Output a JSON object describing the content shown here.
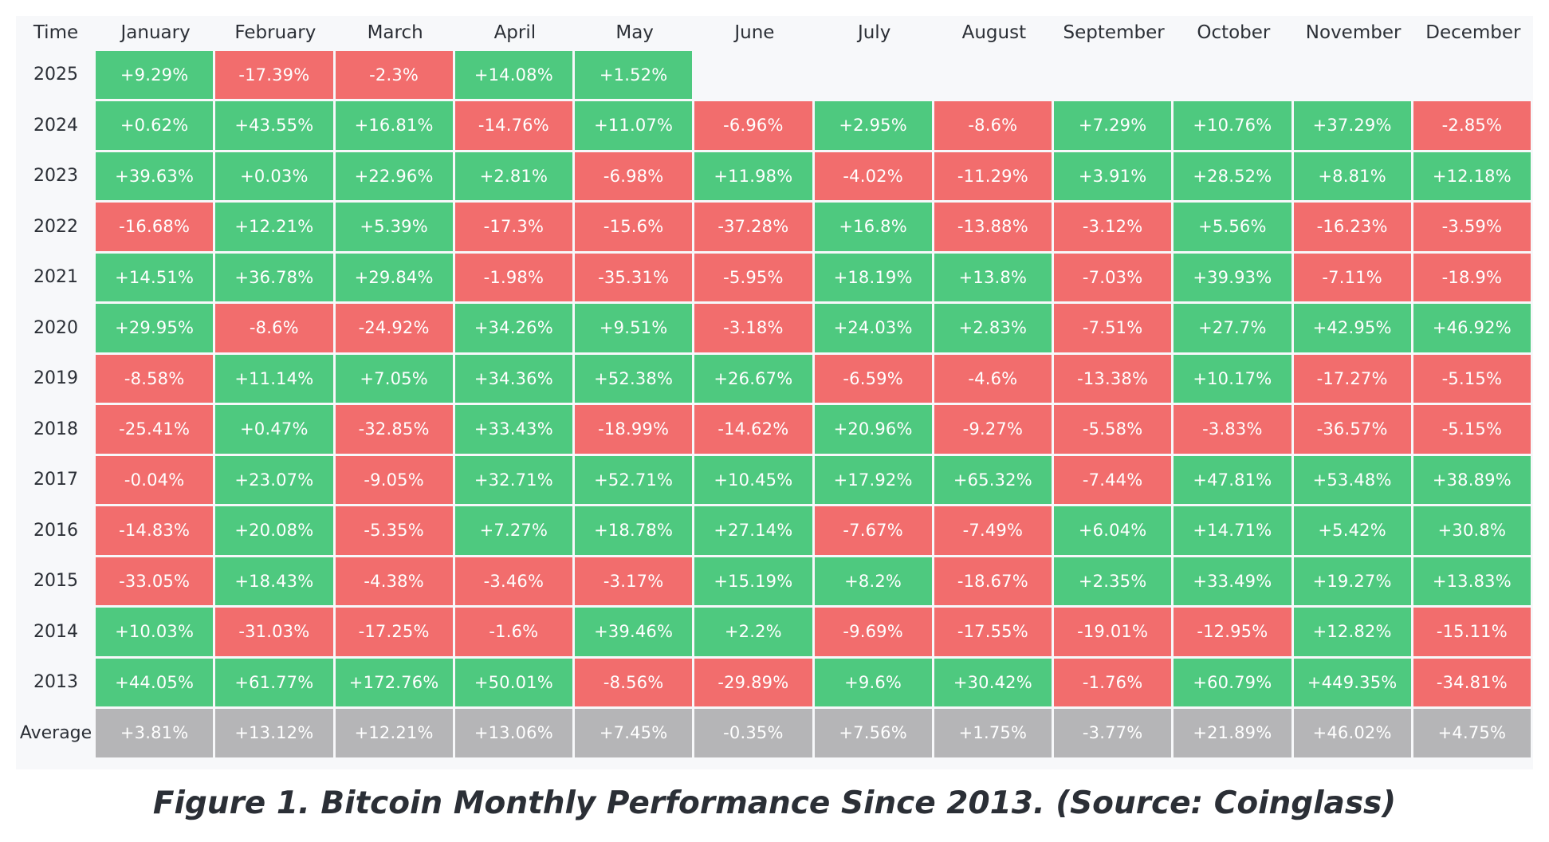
{
  "chart_data": {
    "type": "heatmap",
    "corner_label": "Time",
    "columns": [
      "January",
      "February",
      "March",
      "April",
      "May",
      "June",
      "July",
      "August",
      "September",
      "October",
      "November",
      "December"
    ],
    "rows": [
      {
        "label": "2025",
        "values": [
          "+9.29%",
          "-17.39%",
          "-2.3%",
          "+14.08%",
          "+1.52%",
          null,
          null,
          null,
          null,
          null,
          null,
          null
        ]
      },
      {
        "label": "2024",
        "values": [
          "+0.62%",
          "+43.55%",
          "+16.81%",
          "-14.76%",
          "+11.07%",
          "-6.96%",
          "+2.95%",
          "-8.6%",
          "+7.29%",
          "+10.76%",
          "+37.29%",
          "-2.85%"
        ]
      },
      {
        "label": "2023",
        "values": [
          "+39.63%",
          "+0.03%",
          "+22.96%",
          "+2.81%",
          "-6.98%",
          "+11.98%",
          "-4.02%",
          "-11.29%",
          "+3.91%",
          "+28.52%",
          "+8.81%",
          "+12.18%"
        ]
      },
      {
        "label": "2022",
        "values": [
          "-16.68%",
          "+12.21%",
          "+5.39%",
          "-17.3%",
          "-15.6%",
          "-37.28%",
          "+16.8%",
          "-13.88%",
          "-3.12%",
          "+5.56%",
          "-16.23%",
          "-3.59%"
        ]
      },
      {
        "label": "2021",
        "values": [
          "+14.51%",
          "+36.78%",
          "+29.84%",
          "-1.98%",
          "-35.31%",
          "-5.95%",
          "+18.19%",
          "+13.8%",
          "-7.03%",
          "+39.93%",
          "-7.11%",
          "-18.9%"
        ]
      },
      {
        "label": "2020",
        "values": [
          "+29.95%",
          "-8.6%",
          "-24.92%",
          "+34.26%",
          "+9.51%",
          "-3.18%",
          "+24.03%",
          "+2.83%",
          "-7.51%",
          "+27.7%",
          "+42.95%",
          "+46.92%"
        ]
      },
      {
        "label": "2019",
        "values": [
          "-8.58%",
          "+11.14%",
          "+7.05%",
          "+34.36%",
          "+52.38%",
          "+26.67%",
          "-6.59%",
          "-4.6%",
          "-13.38%",
          "+10.17%",
          "-17.27%",
          "-5.15%"
        ]
      },
      {
        "label": "2018",
        "values": [
          "-25.41%",
          "+0.47%",
          "-32.85%",
          "+33.43%",
          "-18.99%",
          "-14.62%",
          "+20.96%",
          "-9.27%",
          "-5.58%",
          "-3.83%",
          "-36.57%",
          "-5.15%"
        ]
      },
      {
        "label": "2017",
        "values": [
          "-0.04%",
          "+23.07%",
          "-9.05%",
          "+32.71%",
          "+52.71%",
          "+10.45%",
          "+17.92%",
          "+65.32%",
          "-7.44%",
          "+47.81%",
          "+53.48%",
          "+38.89%"
        ]
      },
      {
        "label": "2016",
        "values": [
          "-14.83%",
          "+20.08%",
          "-5.35%",
          "+7.27%",
          "+18.78%",
          "+27.14%",
          "-7.67%",
          "-7.49%",
          "+6.04%",
          "+14.71%",
          "+5.42%",
          "+30.8%"
        ]
      },
      {
        "label": "2015",
        "values": [
          "-33.05%",
          "+18.43%",
          "-4.38%",
          "-3.46%",
          "-3.17%",
          "+15.19%",
          "+8.2%",
          "-18.67%",
          "+2.35%",
          "+33.49%",
          "+19.27%",
          "+13.83%"
        ]
      },
      {
        "label": "2014",
        "values": [
          "+10.03%",
          "-31.03%",
          "-17.25%",
          "-1.6%",
          "+39.46%",
          "+2.2%",
          "-9.69%",
          "-17.55%",
          "-19.01%",
          "-12.95%",
          "+12.82%",
          "-15.11%"
        ]
      },
      {
        "label": "2013",
        "values": [
          "+44.05%",
          "+61.77%",
          "+172.76%",
          "+50.01%",
          "-8.56%",
          "-29.89%",
          "+9.6%",
          "+30.42%",
          "-1.76%",
          "+60.79%",
          "+449.35%",
          "-34.81%"
        ]
      }
    ],
    "average": {
      "label": "Average",
      "values": [
        "+3.81%",
        "+13.12%",
        "+12.21%",
        "+13.06%",
        "+7.45%",
        "-0.35%",
        "+7.56%",
        "+1.75%",
        "-3.77%",
        "+21.89%",
        "+46.02%",
        "+4.75%"
      ]
    },
    "colors": {
      "positive": "#4ec97f",
      "negative": "#f26d6d",
      "average": "#b5b5b7",
      "header_text": "#2b2f36",
      "background": "#f7f8fa",
      "grid": "#ffffff"
    }
  },
  "caption": "Figure 1. Bitcoin Monthly Performance Since 2013. (Source: Coinglass)"
}
